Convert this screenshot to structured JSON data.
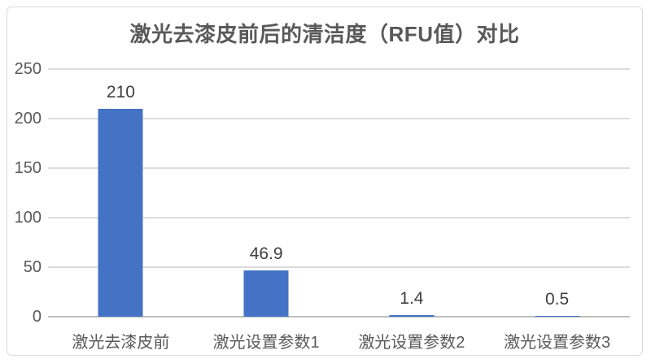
{
  "chart_data": {
    "type": "bar",
    "title": "激光去漆皮前后的清洁度（RFU值）对比",
    "categories": [
      "激光去漆皮前",
      "激光设置参数1",
      "激光设置参数2",
      "激光设置参数3"
    ],
    "values": [
      210,
      46.9,
      1.4,
      0.5
    ],
    "value_labels": [
      "210",
      "46.9",
      "1.4",
      "0.5"
    ],
    "xlabel": "",
    "ylabel": "",
    "ylim": [
      0,
      250
    ],
    "yticks": [
      0,
      50,
      100,
      150,
      200,
      250
    ],
    "grid": true,
    "legend": "none",
    "bar_color": "#4472C4",
    "title_color": "#595959",
    "axis_text_color": "#595959",
    "value_label_color": "#404040",
    "gridline_color": "#DCDCDC",
    "axis_line_color": "#BFBFBF",
    "border_color": "#D9D9D9",
    "background": "#FFFFFF"
  }
}
